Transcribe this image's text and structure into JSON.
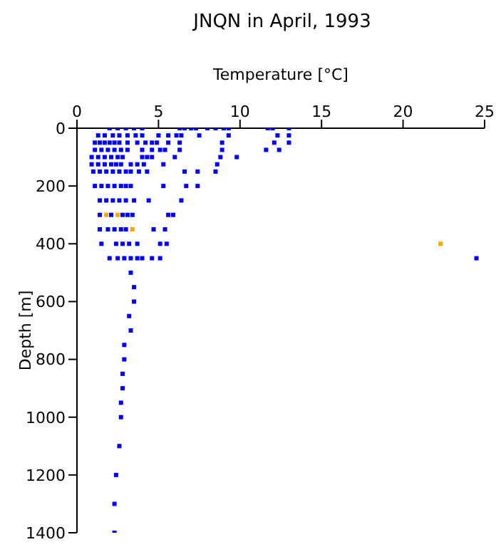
{
  "chart_data": {
    "type": "scatter",
    "title": "JNQN in April, 1993",
    "xlabel": "Temperature [°C]",
    "ylabel": "Depth [m]",
    "xlim": [
      0,
      25
    ],
    "xticks": [
      0,
      5,
      10,
      15,
      20,
      25
    ],
    "ylim": [
      1400,
      0
    ],
    "yticks": [
      0,
      200,
      400,
      600,
      800,
      1000,
      1200,
      1400
    ],
    "marker": "square",
    "series": [
      {
        "color": "#0000ff",
        "x": [
          2.0,
          2.5,
          3.0,
          3.5,
          4.0,
          6.3,
          6.6,
          7.0,
          7.3,
          8.0,
          8.5,
          9.0,
          9.3,
          11.7,
          12.0,
          13.0,
          1.3,
          1.7,
          2.2,
          2.6,
          3.1,
          3.6,
          4.0,
          5.0,
          5.6,
          6.1,
          6.4,
          7.5,
          9.3,
          12.3,
          13.0,
          1.1,
          1.4,
          1.7,
          2.0,
          2.3,
          2.6,
          3.1,
          3.7,
          4.2,
          4.6,
          4.9,
          5.6,
          6.3,
          8.9,
          12.1,
          13.0,
          1.1,
          1.5,
          1.9,
          2.3,
          2.7,
          3.1,
          4.0,
          4.6,
          5.1,
          5.4,
          6.3,
          8.9,
          11.6,
          12.4,
          0.9,
          1.3,
          1.7,
          2.1,
          2.5,
          2.8,
          4.0,
          4.3,
          4.6,
          6.0,
          8.8,
          9.8,
          0.9,
          1.3,
          1.7,
          2.1,
          2.4,
          2.7,
          3.3,
          3.7,
          4.1,
          5.3,
          8.6,
          1.0,
          1.4,
          1.8,
          2.2,
          2.6,
          3.0,
          3.3,
          3.8,
          4.3,
          6.6,
          7.4,
          8.5,
          1.1,
          1.5,
          1.9,
          2.3,
          2.7,
          3.0,
          3.3,
          5.3,
          6.7,
          7.4,
          1.4,
          1.8,
          2.2,
          2.6,
          3.0,
          3.5,
          4.4,
          6.4,
          1.4,
          2.1,
          2.8,
          3.1,
          3.4,
          5.6,
          5.9,
          1.4,
          1.9,
          2.3,
          2.7,
          3.0,
          4.7,
          5.4,
          1.5,
          2.4,
          2.8,
          3.2,
          3.7,
          5.1,
          5.5,
          2.0,
          2.5,
          2.9,
          3.3,
          3.7,
          4.0,
          4.6,
          5.1,
          24.5,
          3.3,
          3.5,
          3.5,
          3.2,
          3.3,
          2.9,
          2.9,
          2.8,
          2.8,
          2.7,
          2.7,
          2.6,
          2.4,
          2.3,
          2.3
        ],
        "values": [
          0,
          0,
          0,
          0,
          0,
          0,
          0,
          0,
          0,
          0,
          0,
          0,
          0,
          0,
          0,
          0,
          25,
          25,
          25,
          25,
          25,
          25,
          25,
          25,
          25,
          25,
          25,
          25,
          25,
          25,
          25,
          50,
          50,
          50,
          50,
          50,
          50,
          50,
          50,
          50,
          50,
          50,
          50,
          50,
          50,
          50,
          50,
          75,
          75,
          75,
          75,
          75,
          75,
          75,
          75,
          75,
          75,
          75,
          75,
          75,
          75,
          100,
          100,
          100,
          100,
          100,
          100,
          100,
          100,
          100,
          100,
          100,
          100,
          125,
          125,
          125,
          125,
          125,
          125,
          125,
          125,
          125,
          125,
          125,
          150,
          150,
          150,
          150,
          150,
          150,
          150,
          150,
          150,
          150,
          150,
          150,
          200,
          200,
          200,
          200,
          200,
          200,
          200,
          200,
          200,
          200,
          250,
          250,
          250,
          250,
          250,
          250,
          250,
          250,
          300,
          300,
          300,
          300,
          300,
          300,
          300,
          350,
          350,
          350,
          350,
          350,
          350,
          350,
          400,
          400,
          400,
          400,
          400,
          400,
          400,
          450,
          450,
          450,
          450,
          450,
          450,
          450,
          450,
          450,
          500,
          550,
          600,
          650,
          700,
          750,
          800,
          850,
          900,
          950,
          1000,
          1100,
          1200,
          1300,
          1400
        ]
      },
      {
        "color": "#ffa500",
        "x": [
          1.8,
          2.5,
          3.4,
          22.3
        ],
        "values": [
          300,
          300,
          350,
          400
        ]
      }
    ]
  }
}
